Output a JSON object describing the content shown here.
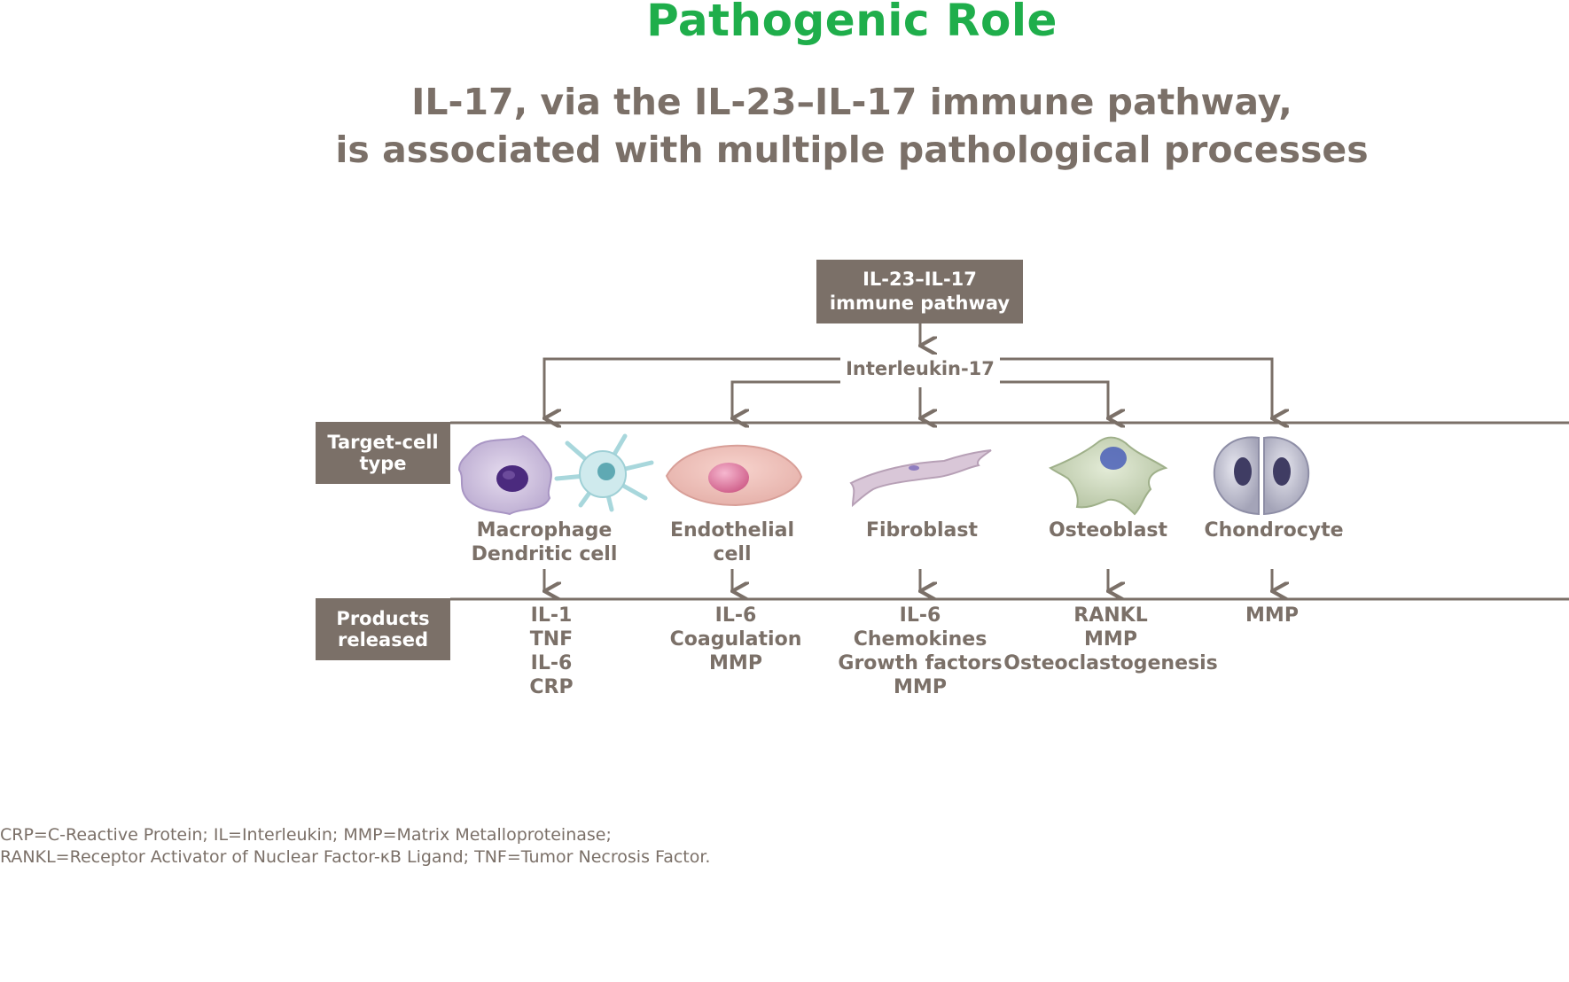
{
  "title": "Pathogenic Role",
  "subtitle": {
    "line1": "IL-17, via the IL-23–IL-17 immune pathway,",
    "line2": "is associated with multiple pathological processes"
  },
  "pathway_box": {
    "line1": "IL-23–IL-17",
    "line2": "immune pathway"
  },
  "mediator": "Interleukin-17",
  "row_labels": {
    "target": {
      "line1": "Target-cell",
      "line2": "type"
    },
    "products": {
      "line1": "Products",
      "line2": "released"
    }
  },
  "cells": [
    {
      "name": [
        "Macrophage",
        "Dendritic cell"
      ],
      "icons": [
        "macrophage-icon",
        "dendritic-cell-icon"
      ],
      "products": [
        "IL-1",
        "TNF",
        "IL-6",
        "CRP"
      ]
    },
    {
      "name": [
        "Endothelial",
        "cell"
      ],
      "icons": [
        "endothelial-cell-icon"
      ],
      "products": [
        "IL-6",
        "Coagulation",
        "MMP"
      ]
    },
    {
      "name": [
        "Fibroblast"
      ],
      "icons": [
        "fibroblast-icon"
      ],
      "products": [
        "IL-6",
        "Chemokines",
        "Growth factors",
        "MMP"
      ]
    },
    {
      "name": [
        "Osteoblast"
      ],
      "icons": [
        "osteoblast-icon"
      ],
      "products": [
        "RANKL",
        "MMP",
        "Osteoclastogenesis"
      ]
    },
    {
      "name": [
        "Chondrocyte"
      ],
      "icons": [
        "chondrocyte-icon"
      ],
      "products": [
        "MMP"
      ]
    }
  ],
  "colors": {
    "title": "#1fae4b",
    "text": "#7b7068",
    "box": "#7b7068"
  },
  "footnote": {
    "line1": "CRP=C-Reactive Protein; IL=Interleukin; MMP=Matrix Metalloproteinase;",
    "line2": "RANKL=Receptor Activator of Nuclear Factor-κB Ligand; TNF=Tumor Necrosis Factor."
  }
}
